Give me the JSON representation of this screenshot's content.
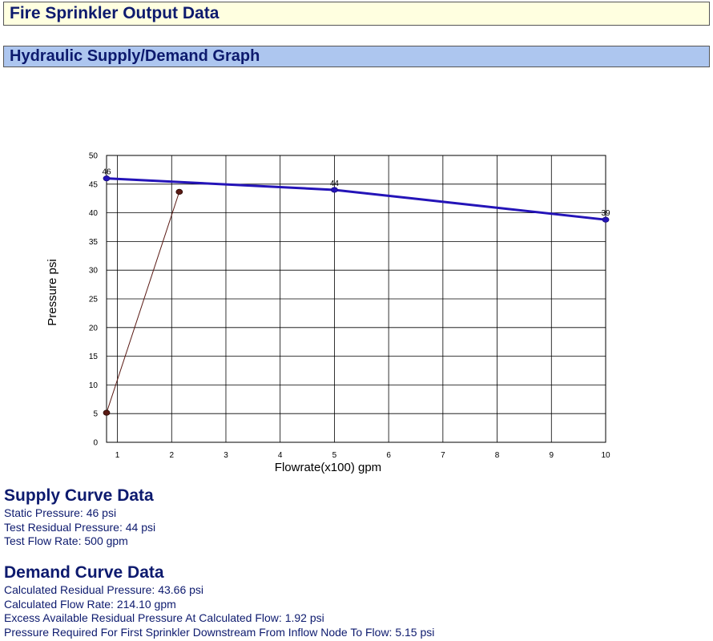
{
  "header": {
    "title": "Fire Sprinkler Output Data"
  },
  "graph_section": {
    "title": "Hydraulic Supply/Demand Graph"
  },
  "chart_data": {
    "type": "line",
    "title": "",
    "xlabel": "Flowrate(x100)  gpm",
    "ylabel": "Pressure  psi",
    "xlim": [
      0.8,
      10
    ],
    "ylim": [
      0,
      50
    ],
    "x_ticks": [
      1,
      2,
      3,
      4,
      5,
      6,
      7,
      8,
      9,
      10
    ],
    "y_ticks": [
      0,
      5,
      10,
      15,
      20,
      25,
      30,
      35,
      40,
      45,
      50
    ],
    "grid": true,
    "series": [
      {
        "role": "supply",
        "color": "#2414b8",
        "points": [
          {
            "x": 0.8,
            "y": 46,
            "label": "46"
          },
          {
            "x": 5,
            "y": 44,
            "label": "44"
          },
          {
            "x": 10,
            "y": 38.8,
            "label": "39"
          }
        ]
      },
      {
        "role": "demand",
        "color": "#5a1a14",
        "points": [
          {
            "x": 0.8,
            "y": 5.15,
            "label": ""
          },
          {
            "x": 2.141,
            "y": 43.66,
            "label": ""
          }
        ]
      }
    ]
  },
  "supply": {
    "title": "Supply Curve Data",
    "lines": [
      "Static Pressure: 46 psi",
      "Test Residual Pressure: 44 psi",
      "Test Flow Rate: 500 gpm"
    ]
  },
  "demand": {
    "title": "Demand Curve Data",
    "lines": [
      "Calculated Residual Pressure: 43.66 psi",
      "Calculated Flow Rate: 214.10 gpm",
      "Excess Available Residual Pressure At Calculated Flow: 1.92 psi",
      "Pressure Required For First Sprinkler Downstream From Inflow Node To Flow: 5.15 psi"
    ]
  }
}
